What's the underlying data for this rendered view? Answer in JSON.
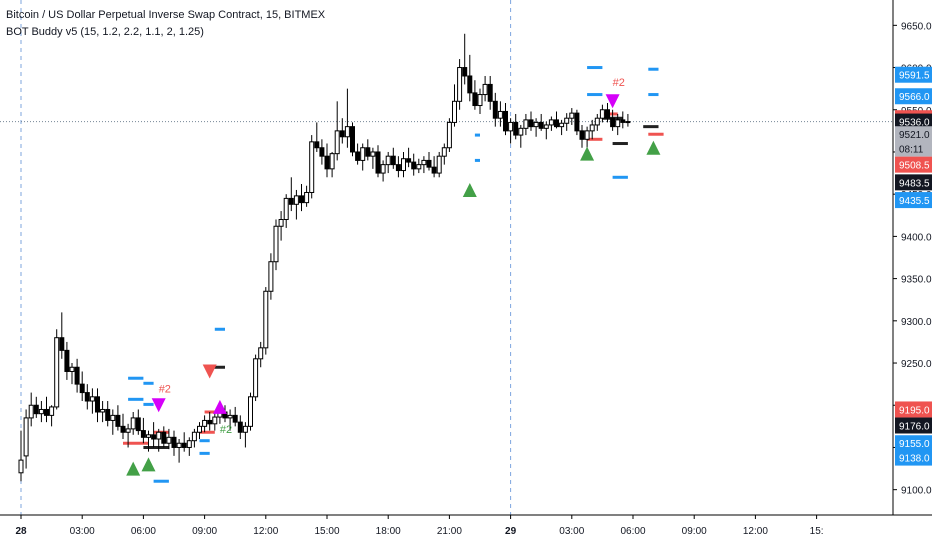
{
  "header": {
    "symbol_title": "Bitcoin / US Dollar Perpetual Inverse Swap Contract, 15, BITMEX",
    "indicator_title": "BOT Buddy v5 (15, 1.2, 2.2, 1.1, 2, 1.25)"
  },
  "colors": {
    "up": "#ffffff",
    "down": "#000000",
    "wick": "#000000",
    "grid_v": "#5d8fd6",
    "blue_level": "#2196f3",
    "red_level": "#ef5350",
    "buy_marker": "#43a047",
    "sell_marker_red": "#ef5350",
    "sell_marker_magenta": "#d500f9",
    "last_price": "#131722"
  },
  "chart_data": {
    "type": "candlestick",
    "title": "Bitcoin / US Dollar Perpetual Inverse Swap Contract, 15, BITMEX",
    "ylim": [
      9070,
      9680
    ],
    "y_ticks": [
      9100.0,
      9150.0,
      9200.0,
      9250.0,
      9300.0,
      9350.0,
      9400.0,
      9450.0,
      9500.0,
      9550.0,
      9600.0,
      9650.0
    ],
    "x_ticks": [
      "28",
      "03:00",
      "06:00",
      "09:00",
      "12:00",
      "15:00",
      "18:00",
      "21:00",
      "29",
      "03:00",
      "06:00",
      "09:00",
      "12:00",
      "15:"
    ],
    "x_tick_slots": [
      0,
      12,
      24,
      36,
      48,
      60,
      72,
      84,
      96,
      108,
      120,
      132,
      144,
      156
    ],
    "day_separators": [
      0,
      96
    ],
    "crosshair_price": 9536.0,
    "price_labels": [
      {
        "value": "9591.5",
        "price": 9591.5,
        "type": "blue"
      },
      {
        "value": "9566.0",
        "price": 9566.0,
        "type": "blue"
      },
      {
        "value": "9540.0",
        "price": 9540.0,
        "type": "red"
      },
      {
        "value": "9536.0",
        "price": 9536.0,
        "type": "dark"
      },
      {
        "value": "9521.0",
        "price": 9521.0,
        "type": "gray"
      },
      {
        "value": "08:11",
        "price": 9504.0,
        "type": "gray"
      },
      {
        "value": "9508.5",
        "price": 9485.0,
        "type": "red"
      },
      {
        "value": "9483.5",
        "price": 9464.0,
        "type": "dark"
      },
      {
        "value": "9435.5",
        "price": 9443.0,
        "type": "blue"
      },
      {
        "value": "9195.0",
        "price": 9195.0,
        "type": "red"
      },
      {
        "value": "9176.0",
        "price": 9176.0,
        "type": "dark"
      },
      {
        "value": "9155.0",
        "price": 9155.0,
        "type": "blue"
      },
      {
        "value": "9138.0",
        "price": 9138.0,
        "type": "blue"
      }
    ],
    "candles": [
      [
        9120,
        9170,
        9110,
        9135
      ],
      [
        9140,
        9195,
        9125,
        9185
      ],
      [
        9185,
        9215,
        9175,
        9200
      ],
      [
        9200,
        9210,
        9185,
        9190
      ],
      [
        9190,
        9205,
        9180,
        9195
      ],
      [
        9195,
        9210,
        9180,
        9188
      ],
      [
        9188,
        9200,
        9175,
        9198
      ],
      [
        9198,
        9290,
        9195,
        9280
      ],
      [
        9280,
        9310,
        9255,
        9265
      ],
      [
        9265,
        9275,
        9230,
        9240
      ],
      [
        9240,
        9250,
        9225,
        9245
      ],
      [
        9245,
        9255,
        9215,
        9225
      ],
      [
        9225,
        9240,
        9205,
        9215
      ],
      [
        9215,
        9225,
        9195,
        9205
      ],
      [
        9205,
        9220,
        9190,
        9210
      ],
      [
        9210,
        9220,
        9180,
        9192
      ],
      [
        9192,
        9205,
        9180,
        9195
      ],
      [
        9195,
        9205,
        9175,
        9182
      ],
      [
        9182,
        9195,
        9165,
        9188
      ],
      [
        9188,
        9200,
        9170,
        9175
      ],
      [
        9175,
        9190,
        9160,
        9168
      ],
      [
        9168,
        9178,
        9150,
        9172
      ],
      [
        9172,
        9192,
        9165,
        9185
      ],
      [
        9185,
        9195,
        9165,
        9170
      ],
      [
        9170,
        9185,
        9155,
        9162
      ],
      [
        9162,
        9170,
        9145,
        9165
      ],
      [
        9165,
        9180,
        9150,
        9160
      ],
      [
        9160,
        9172,
        9145,
        9168
      ],
      [
        9168,
        9175,
        9150,
        9155
      ],
      [
        9155,
        9172,
        9148,
        9162
      ],
      [
        9162,
        9170,
        9140,
        9150
      ],
      [
        9150,
        9160,
        9132,
        9155
      ],
      [
        9155,
        9168,
        9145,
        9150
      ],
      [
        9150,
        9162,
        9140,
        9158
      ],
      [
        9158,
        9172,
        9150,
        9168
      ],
      [
        9168,
        9180,
        9160,
        9175
      ],
      [
        9175,
        9188,
        9168,
        9182
      ],
      [
        9182,
        9192,
        9170,
        9178
      ],
      [
        9178,
        9190,
        9170,
        9186
      ],
      [
        9186,
        9198,
        9178,
        9192
      ],
      [
        9192,
        9200,
        9180,
        9185
      ],
      [
        9185,
        9195,
        9170,
        9188
      ],
      [
        9188,
        9198,
        9175,
        9180
      ],
      [
        9180,
        9188,
        9160,
        9168
      ],
      [
        9168,
        9180,
        9150,
        9175
      ],
      [
        9175,
        9215,
        9170,
        9210
      ],
      [
        9210,
        9260,
        9205,
        9255
      ],
      [
        9255,
        9275,
        9245,
        9268
      ],
      [
        9268,
        9340,
        9260,
        9335
      ],
      [
        9335,
        9380,
        9325,
        9370
      ],
      [
        9370,
        9420,
        9360,
        9412
      ],
      [
        9412,
        9430,
        9395,
        9420
      ],
      [
        9420,
        9450,
        9410,
        9445
      ],
      [
        9445,
        9470,
        9430,
        9438
      ],
      [
        9438,
        9455,
        9420,
        9448
      ],
      [
        9448,
        9462,
        9430,
        9440
      ],
      [
        9440,
        9460,
        9435,
        9452
      ],
      [
        9452,
        9520,
        9445,
        9512
      ],
      [
        9512,
        9535,
        9500,
        9505
      ],
      [
        9505,
        9515,
        9485,
        9495
      ],
      [
        9495,
        9510,
        9470,
        9480
      ],
      [
        9480,
        9500,
        9470,
        9498
      ],
      [
        9498,
        9560,
        9490,
        9525
      ],
      [
        9525,
        9540,
        9510,
        9518
      ],
      [
        9518,
        9575,
        9505,
        9530
      ],
      [
        9530,
        9535,
        9495,
        9500
      ],
      [
        9500,
        9510,
        9485,
        9490
      ],
      [
        9490,
        9510,
        9478,
        9505
      ],
      [
        9505,
        9515,
        9490,
        9495
      ],
      [
        9495,
        9505,
        9480,
        9500
      ],
      [
        9500,
        9508,
        9470,
        9475
      ],
      [
        9475,
        9490,
        9465,
        9485
      ],
      [
        9485,
        9500,
        9475,
        9495
      ],
      [
        9495,
        9505,
        9480,
        9485
      ],
      [
        9485,
        9495,
        9470,
        9478
      ],
      [
        9478,
        9500,
        9470,
        9492
      ],
      [
        9492,
        9505,
        9482,
        9488
      ],
      [
        9488,
        9498,
        9472,
        9480
      ],
      [
        9480,
        9492,
        9475,
        9485
      ],
      [
        9485,
        9495,
        9475,
        9490
      ],
      [
        9490,
        9500,
        9478,
        9482
      ],
      [
        9482,
        9495,
        9470,
        9475
      ],
      [
        9475,
        9500,
        9470,
        9495
      ],
      [
        9495,
        9510,
        9485,
        9505
      ],
      [
        9505,
        9540,
        9500,
        9535
      ],
      [
        9535,
        9580,
        9530,
        9560
      ],
      [
        9560,
        9610,
        9550,
        9600
      ],
      [
        9600,
        9640,
        9580,
        9590
      ],
      [
        9590,
        9615,
        9560,
        9570
      ],
      [
        9570,
        9585,
        9550,
        9555
      ],
      [
        9555,
        9575,
        9545,
        9568
      ],
      [
        9568,
        9590,
        9560,
        9580
      ],
      [
        9580,
        9590,
        9550,
        9560
      ],
      [
        9560,
        9570,
        9530,
        9540
      ],
      [
        9540,
        9560,
        9530,
        9548
      ],
      [
        9548,
        9558,
        9520,
        9525
      ],
      [
        9525,
        9540,
        9510,
        9535
      ],
      [
        9535,
        9545,
        9515,
        9520
      ],
      [
        9520,
        9532,
        9505,
        9528
      ],
      [
        9528,
        9545,
        9520,
        9538
      ],
      [
        9538,
        9548,
        9525,
        9530
      ],
      [
        9530,
        9540,
        9518,
        9535
      ],
      [
        9535,
        9545,
        9525,
        9528
      ],
      [
        9528,
        9536,
        9515,
        9532
      ],
      [
        9532,
        9542,
        9525,
        9538
      ],
      [
        9538,
        9548,
        9528,
        9530
      ],
      [
        9530,
        9538,
        9520,
        9534
      ],
      [
        9534,
        9546,
        9525,
        9540
      ],
      [
        9540,
        9552,
        9532,
        9546
      ],
      [
        9546,
        9550,
        9520,
        9525
      ],
      [
        9525,
        9532,
        9505,
        9515
      ],
      [
        9515,
        9530,
        9505,
        9525
      ],
      [
        9525,
        9538,
        9515,
        9532
      ],
      [
        9532,
        9545,
        9525,
        9540
      ],
      [
        9540,
        9556,
        9535,
        9550
      ],
      [
        9550,
        9558,
        9535,
        9540
      ],
      [
        9540,
        9550,
        9525,
        9530
      ],
      [
        9530,
        9545,
        9520,
        9538
      ],
      [
        9538,
        9548,
        9528,
        9535
      ],
      [
        9535,
        9545,
        9530,
        9536
      ]
    ],
    "levels": [
      {
        "x0": 21,
        "x1": 24,
        "price": 9232,
        "color": "blue"
      },
      {
        "x0": 24,
        "x1": 26,
        "price": 9226,
        "color": "blue"
      },
      {
        "x0": 21,
        "x1": 24,
        "price": 9207,
        "color": "blue"
      },
      {
        "x0": 24,
        "x1": 26,
        "price": 9201,
        "color": "blue"
      },
      {
        "x0": 20,
        "x1": 25,
        "price": 9155,
        "color": "red"
      },
      {
        "x0": 24,
        "x1": 29,
        "price": 9150,
        "color": "dark"
      },
      {
        "x0": 26,
        "x1": 29,
        "price": 9168,
        "color": "red"
      },
      {
        "x0": 26,
        "x1": 29,
        "price": 9110,
        "color": "blue"
      },
      {
        "x0": 35,
        "x1": 38,
        "price": 9168,
        "color": "red"
      },
      {
        "x0": 35,
        "x1": 37,
        "price": 9158,
        "color": "blue"
      },
      {
        "x0": 35,
        "x1": 37,
        "price": 9143,
        "color": "blue"
      },
      {
        "x0": 37,
        "x1": 40,
        "price": 9245,
        "color": "dark"
      },
      {
        "x0": 38,
        "x1": 40,
        "price": 9290,
        "color": "blue"
      },
      {
        "x0": 36,
        "x1": 40,
        "price": 9192,
        "color": "red"
      },
      {
        "x0": 89,
        "x1": 90,
        "price": 9520,
        "color": "blue"
      },
      {
        "x0": 89,
        "x1": 90,
        "price": 9490,
        "color": "blue"
      },
      {
        "x0": 111,
        "x1": 114,
        "price": 9600,
        "color": "blue"
      },
      {
        "x0": 111,
        "x1": 114,
        "price": 9568,
        "color": "blue"
      },
      {
        "x0": 114,
        "x1": 117,
        "price": 9545,
        "color": "red"
      },
      {
        "x0": 116,
        "x1": 119,
        "price": 9510,
        "color": "dark"
      },
      {
        "x0": 114,
        "x1": 118,
        "price": 9540,
        "color": "dark"
      },
      {
        "x0": 111,
        "x1": 114,
        "price": 9515,
        "color": "red"
      },
      {
        "x0": 116,
        "x1": 119,
        "price": 9470,
        "color": "blue"
      },
      {
        "x0": 123,
        "x1": 125,
        "price": 9598,
        "color": "blue"
      },
      {
        "x0": 123,
        "x1": 125,
        "price": 9568,
        "color": "blue"
      },
      {
        "x0": 122,
        "x1": 125,
        "price": 9530,
        "color": "dark"
      },
      {
        "x0": 123,
        "x1": 126,
        "price": 9521,
        "color": "red"
      }
    ],
    "markers": [
      {
        "slot": 22,
        "price": 9125,
        "shape": "up",
        "color": "buy"
      },
      {
        "slot": 25,
        "price": 9130,
        "shape": "up",
        "color": "buy"
      },
      {
        "slot": 27,
        "price": 9200,
        "shape": "down",
        "color": "magenta"
      },
      {
        "slot": 37,
        "price": 9240,
        "shape": "down",
        "color": "red"
      },
      {
        "slot": 39,
        "price": 9198,
        "shape": "up",
        "color": "magenta"
      },
      {
        "slot": 88,
        "price": 9455,
        "shape": "up",
        "color": "buy"
      },
      {
        "slot": 111,
        "price": 9498,
        "shape": "up",
        "color": "buy"
      },
      {
        "slot": 116,
        "price": 9560,
        "shape": "down",
        "color": "magenta"
      },
      {
        "slot": 124,
        "price": 9505,
        "shape": "up",
        "color": "buy"
      }
    ],
    "annotations": [
      {
        "text": "#2",
        "slot": 27,
        "price": 9215,
        "color": "red"
      },
      {
        "text": "#2",
        "slot": 39,
        "price": 9167,
        "color": "buy"
      },
      {
        "text": "#2",
        "slot": 116,
        "price": 9578,
        "color": "red"
      }
    ]
  }
}
